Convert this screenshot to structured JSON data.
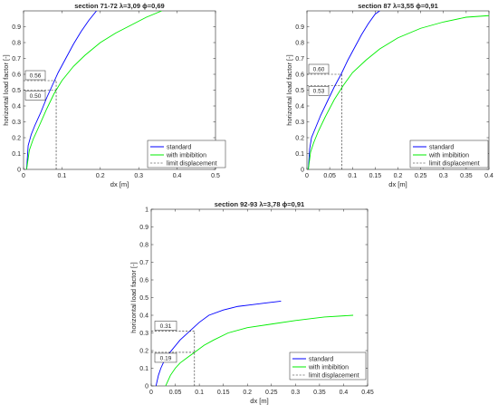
{
  "chart_data": [
    {
      "type": "line",
      "title_prefix": "section 71-72",
      "title_params": "λ=3,09 ϕ=0,69",
      "xlabel": "dx [m]",
      "ylabel": "horizontal load factor [-]",
      "xlim": [
        0,
        0.5
      ],
      "ylim": [
        0,
        1
      ],
      "xticks": [
        "0",
        "0.1",
        "0.2",
        "0.3",
        "0.4",
        "0.5"
      ],
      "yticks": [
        "0",
        "0.1",
        "0.2",
        "0.3",
        "0.4",
        "0.5",
        "0.6",
        "0.7",
        "0.8",
        "0.9"
      ],
      "legend_position": "lower-right",
      "series": [
        {
          "name": "standard",
          "color": "#0000ff",
          "x": [
            0.008,
            0.012,
            0.02,
            0.03,
            0.045,
            0.06,
            0.075,
            0.09,
            0.11,
            0.13,
            0.15,
            0.17,
            0.19
          ],
          "y": [
            0.0,
            0.15,
            0.22,
            0.28,
            0.36,
            0.45,
            0.53,
            0.61,
            0.7,
            0.79,
            0.87,
            0.94,
            1.0
          ]
        },
        {
          "name": "with imbibition",
          "color": "#00ee00",
          "x": [
            0.008,
            0.015,
            0.025,
            0.04,
            0.06,
            0.08,
            0.1,
            0.13,
            0.16,
            0.2,
            0.24,
            0.28,
            0.32,
            0.36
          ],
          "y": [
            0.0,
            0.12,
            0.19,
            0.27,
            0.38,
            0.48,
            0.56,
            0.65,
            0.72,
            0.8,
            0.86,
            0.91,
            0.96,
            1.0
          ]
        }
      ],
      "limit_displacement": {
        "name": "limit displacement",
        "x": 0.085
      },
      "annotations": [
        {
          "text": "0.56",
          "y": 0.56
        },
        {
          "text": "0.50",
          "y": 0.5
        }
      ]
    },
    {
      "type": "line",
      "title_prefix": "section 87",
      "title_params": "λ=3,55 ϕ=0,91",
      "xlabel": "dx [m]",
      "ylabel": "horizontal load factor [-]",
      "xlim": [
        0,
        0.4
      ],
      "ylim": [
        0,
        1
      ],
      "xticks": [
        "0",
        "0.05",
        "0.1",
        "0.15",
        "0.2",
        "0.25",
        "0.3",
        "0.35",
        "0.4"
      ],
      "yticks": [
        "0",
        "0.1",
        "0.2",
        "0.3",
        "0.4",
        "0.5",
        "0.6",
        "0.7",
        "0.8",
        "0.9"
      ],
      "legend_position": "lower-right",
      "series": [
        {
          "name": "standard",
          "color": "#0000ff",
          "x": [
            0.003,
            0.006,
            0.01,
            0.02,
            0.03,
            0.045,
            0.06,
            0.075,
            0.09,
            0.105,
            0.12,
            0.135,
            0.15,
            0.16
          ],
          "y": [
            0.0,
            0.13,
            0.2,
            0.27,
            0.34,
            0.43,
            0.52,
            0.6,
            0.69,
            0.77,
            0.85,
            0.92,
            0.98,
            1.0
          ]
        },
        {
          "name": "with imbibition",
          "color": "#00ee00",
          "x": [
            0.003,
            0.008,
            0.015,
            0.025,
            0.04,
            0.06,
            0.08,
            0.1,
            0.13,
            0.16,
            0.2,
            0.25,
            0.3,
            0.35,
            0.4
          ],
          "y": [
            0.0,
            0.11,
            0.17,
            0.24,
            0.33,
            0.44,
            0.53,
            0.61,
            0.69,
            0.76,
            0.83,
            0.89,
            0.93,
            0.96,
            0.97
          ]
        }
      ],
      "limit_displacement": {
        "name": "limit displacement",
        "x": 0.077
      },
      "annotations": [
        {
          "text": "0.60",
          "y": 0.6
        },
        {
          "text": "0.53",
          "y": 0.53
        }
      ]
    },
    {
      "type": "line",
      "title_prefix": "section 92-93",
      "title_params": "λ=3,78 ϕ=0,91",
      "xlabel": "dx [m]",
      "ylabel": "horizontal load factor [-]",
      "xlim": [
        0,
        0.45
      ],
      "ylim": [
        0,
        1
      ],
      "xticks": [
        "0",
        "0.05",
        "0.1",
        "0.15",
        "0.2",
        "0.25",
        "0.3",
        "0.35",
        "0.4",
        "0.45"
      ],
      "yticks": [
        "0",
        "0.1",
        "0.2",
        "0.3",
        "0.4",
        "0.5",
        "0.6",
        "0.7",
        "0.8",
        "0.9",
        "1"
      ],
      "legend_position": "lower-right",
      "series": [
        {
          "name": "standard",
          "color": "#0000ff",
          "x": [
            0.01,
            0.015,
            0.02,
            0.03,
            0.045,
            0.06,
            0.08,
            0.1,
            0.12,
            0.15,
            0.18,
            0.21,
            0.24,
            0.27
          ],
          "y": [
            0.0,
            0.06,
            0.1,
            0.16,
            0.21,
            0.26,
            0.31,
            0.36,
            0.4,
            0.43,
            0.45,
            0.46,
            0.47,
            0.48
          ]
        },
        {
          "name": "with imbibition",
          "color": "#00ee00",
          "x": [
            0.03,
            0.035,
            0.04,
            0.05,
            0.06,
            0.075,
            0.09,
            0.11,
            0.13,
            0.16,
            0.2,
            0.25,
            0.3,
            0.36,
            0.42
          ],
          "y": [
            0.0,
            0.03,
            0.06,
            0.1,
            0.13,
            0.16,
            0.19,
            0.23,
            0.26,
            0.3,
            0.33,
            0.35,
            0.37,
            0.39,
            0.4
          ]
        }
      ],
      "limit_displacement": {
        "name": "limit displacement",
        "x": 0.09
      },
      "annotations": [
        {
          "text": "0.31",
          "y": 0.31
        },
        {
          "text": "0.19",
          "y": 0.19
        }
      ]
    }
  ]
}
